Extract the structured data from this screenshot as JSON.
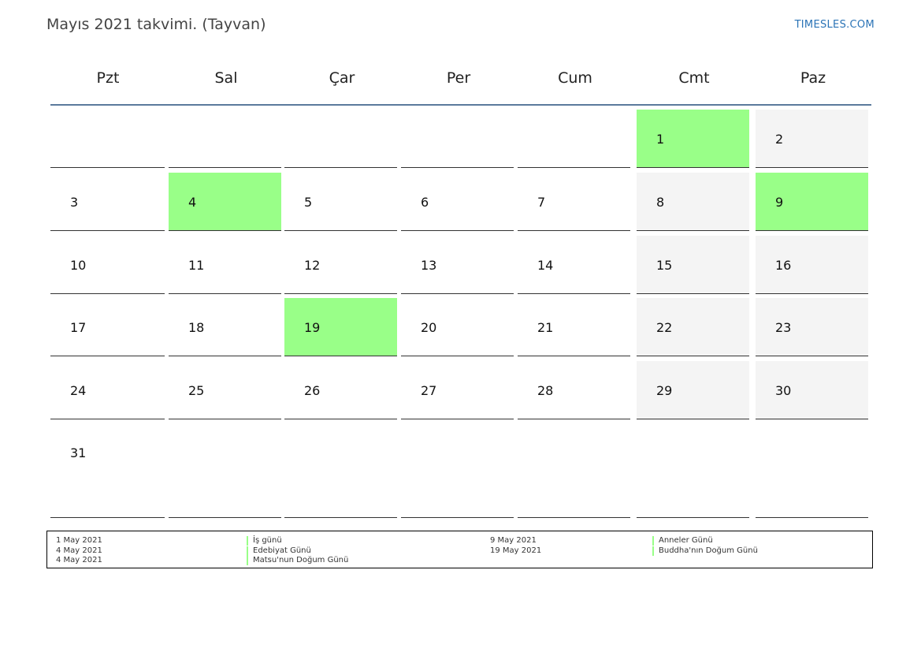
{
  "title": "Mayıs 2021 takvimi. (Tayvan)",
  "brand": "TIMESLES.COM",
  "colors": {
    "holiday": "#99ff88",
    "weekend": "#f4f4f4",
    "header_rule": "#5b7a9c",
    "brand": "#2a73b6"
  },
  "weekdays": [
    "Pzt",
    "Sal",
    "Çar",
    "Per",
    "Cum",
    "Cmt",
    "Paz"
  ],
  "weeks": [
    [
      null,
      null,
      null,
      null,
      null,
      {
        "day": "1",
        "holiday": true
      },
      {
        "day": "2"
      }
    ],
    [
      {
        "day": "3"
      },
      {
        "day": "4",
        "holiday": true
      },
      {
        "day": "5"
      },
      {
        "day": "6"
      },
      {
        "day": "7"
      },
      {
        "day": "8"
      },
      {
        "day": "9",
        "holiday": true
      }
    ],
    [
      {
        "day": "10"
      },
      {
        "day": "11"
      },
      {
        "day": "12"
      },
      {
        "day": "13"
      },
      {
        "day": "14"
      },
      {
        "day": "15"
      },
      {
        "day": "16"
      }
    ],
    [
      {
        "day": "17"
      },
      {
        "day": "18"
      },
      {
        "day": "19",
        "holiday": true
      },
      {
        "day": "20"
      },
      {
        "day": "21"
      },
      {
        "day": "22"
      },
      {
        "day": "23"
      }
    ],
    [
      {
        "day": "24"
      },
      {
        "day": "25"
      },
      {
        "day": "26"
      },
      {
        "day": "27"
      },
      {
        "day": "28"
      },
      {
        "day": "29"
      },
      {
        "day": "30"
      }
    ],
    [
      {
        "day": "31"
      },
      null,
      null,
      null,
      null,
      null,
      null
    ]
  ],
  "legend": {
    "left": [
      {
        "date": "1 May 2021",
        "name": "İş günü"
      },
      {
        "date": "4 May 2021",
        "name": "Edebiyat Günü"
      },
      {
        "date": "4 May 2021",
        "name": "Matsu'nun Doğum Günü"
      }
    ],
    "right": [
      {
        "date": "9 May 2021",
        "name": "Anneler Günü"
      },
      {
        "date": "19 May 2021",
        "name": "Buddha'nın Doğum Günü"
      }
    ]
  }
}
